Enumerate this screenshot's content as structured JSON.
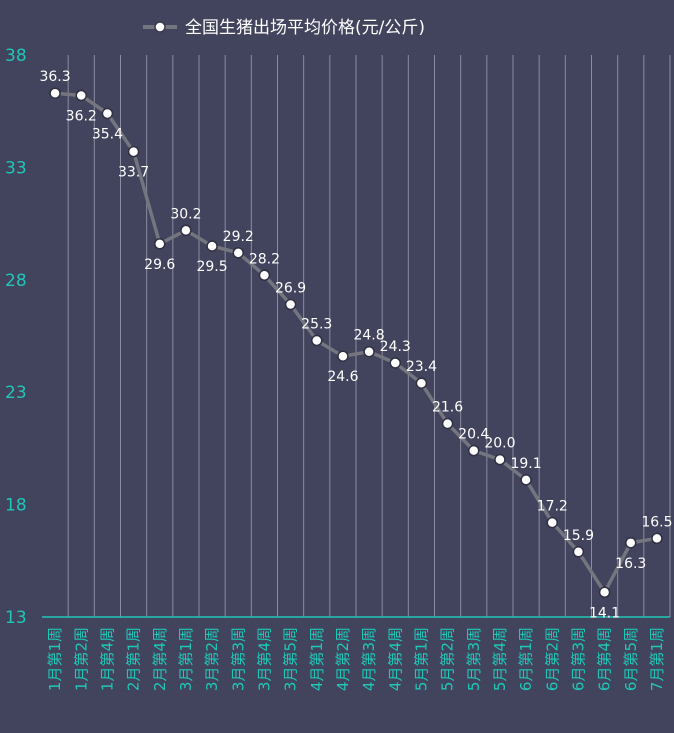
{
  "chart_data": {
    "type": "line",
    "title": "",
    "legend": {
      "position": "top",
      "entries": [
        "全国生猪出场平均价格(元/公斤)"
      ]
    },
    "xlabel": "",
    "ylabel": "",
    "ylim": [
      13,
      38
    ],
    "yticks": [
      13,
      18,
      23,
      28,
      33,
      38
    ],
    "grid": "vertical",
    "categories": [
      "1月第1周",
      "1月第2周",
      "1月第4周",
      "2月第1周",
      "2月第4周",
      "3月第1周",
      "3月第2周",
      "3月第3周",
      "3月第4周",
      "3月第5周",
      "4月第1周",
      "4月第2周",
      "4月第3周",
      "4月第4周",
      "5月第1周",
      "5月第2周",
      "5月第3周",
      "5月第4周",
      "6月第1周",
      "6月第2周",
      "6月第3周",
      "6月第4周",
      "6月第5周",
      "7月第1周"
    ],
    "series": [
      {
        "name": "全国生猪出场平均价格(元/公斤)",
        "values": [
          36.3,
          36.2,
          35.4,
          33.7,
          29.6,
          30.2,
          29.5,
          29.2,
          28.2,
          26.9,
          25.3,
          24.6,
          24.8,
          24.3,
          23.4,
          21.6,
          20.4,
          20.0,
          19.1,
          17.2,
          15.9,
          14.1,
          16.3,
          16.5
        ],
        "label_position": [
          "above",
          "below",
          "below",
          "below",
          "below",
          "above",
          "below",
          "above",
          "above",
          "above",
          "above",
          "below",
          "above",
          "above",
          "above",
          "above",
          "above",
          "above",
          "above",
          "above",
          "above",
          "below",
          "below",
          "above"
        ]
      }
    ]
  },
  "colors": {
    "background": "#42435c",
    "line": "#73767e",
    "axis_text": "#1fc7b7",
    "axis_line": "#1fc7b7",
    "grid": "#8a8ca0",
    "label": "#ffffff"
  }
}
